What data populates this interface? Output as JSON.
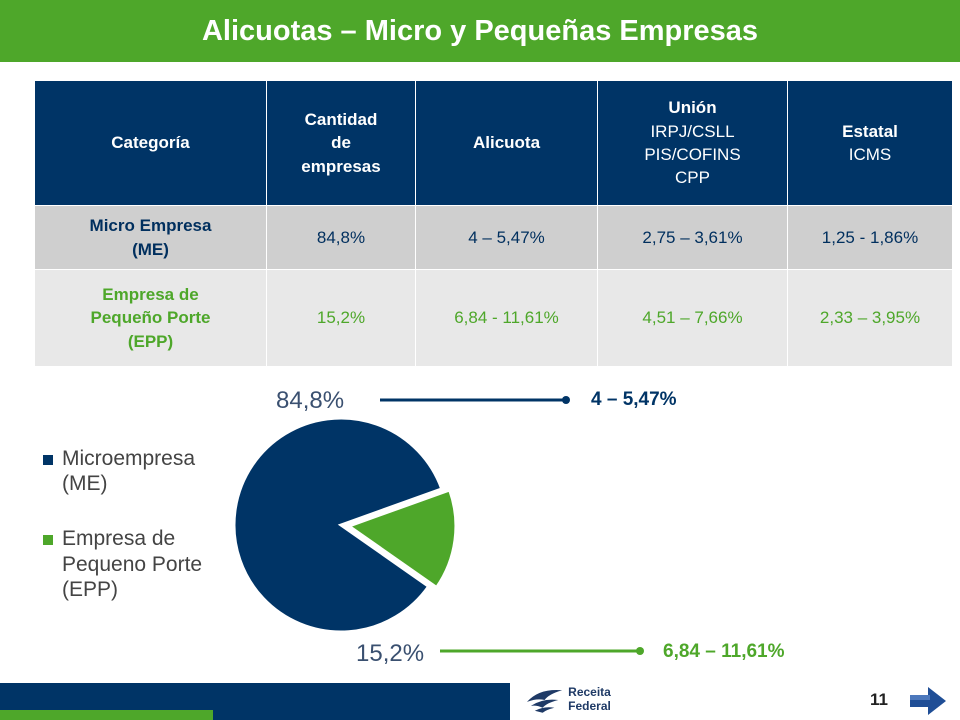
{
  "title": "Alicuotas – Micro y Pequeñas Empresas",
  "table": {
    "headers": {
      "categoria": "Categoría",
      "cantidad": [
        "Cantidad",
        "de",
        "empresas"
      ],
      "alicuota": "Alicuota",
      "union": {
        "title": "Unión",
        "lines": [
          "IRPJ/CSLL",
          "PIS/COFINS",
          "CPP"
        ]
      },
      "estatal": {
        "title": "Estatal",
        "lines": [
          "ICMS"
        ]
      }
    },
    "rows": [
      {
        "categoria": [
          "Micro Empresa",
          "(ME)"
        ],
        "cantidad": "84,8%",
        "alicuota": "4 – 5,47%",
        "union": "2,75 – 3,61%",
        "estatal": "1,25 - 1,86%"
      },
      {
        "categoria": [
          "Empresa de",
          "Pequeño Porte",
          "(EPP)"
        ],
        "cantidad": "15,2%",
        "alicuota": "6,84 - 11,61%",
        "union": "4,51 – 7,66%",
        "estatal": "2,33 – 3,95%"
      }
    ]
  },
  "chart_data": {
    "type": "pie",
    "slices": [
      {
        "label": "Microempresa (ME)",
        "value": 84.8,
        "label_text": "84,8%",
        "callout": "4 – 5,47%",
        "color": "#003466"
      },
      {
        "label": "Empresa de Pequeno Porte (EPP)",
        "value": 15.2,
        "label_text": "15,2%",
        "callout": "6,84 – 11,61%",
        "color": "#4ea72a"
      }
    ],
    "legend": [
      {
        "lines": [
          "Microempresa",
          "(ME)"
        ],
        "color": "#003466"
      },
      {
        "lines": [
          "Empresa de",
          "Pequeno Porte",
          "(EPP)"
        ],
        "color": "#4ea72a"
      }
    ],
    "legend_position": "left"
  },
  "footer": {
    "logo_text": "Receita Federal",
    "page_number": "11"
  },
  "colors": {
    "green": "#4ea72a",
    "navy": "#003466"
  }
}
